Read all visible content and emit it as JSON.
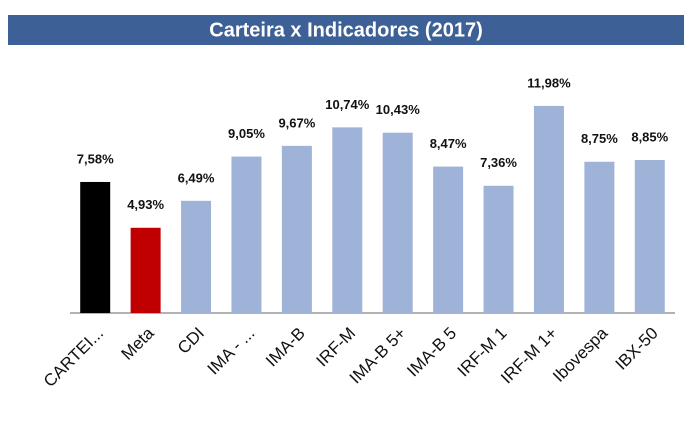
{
  "chart_data": {
    "type": "bar",
    "title": "Carteira x Indicadores (2017)",
    "categories": [
      "CARTEI...",
      "Meta",
      "CDI",
      "IMA - ...",
      "IMA-B",
      "IRF-M",
      "IMA-B 5+",
      "IMA-B 5",
      "IRF-M 1",
      "IRF-M 1+",
      "Ibovespa",
      "IBX-50"
    ],
    "values": [
      7.58,
      4.93,
      6.49,
      9.05,
      9.67,
      10.74,
      10.43,
      8.47,
      7.36,
      11.98,
      8.75,
      8.85
    ],
    "value_labels": [
      "7,58%",
      "4,93%",
      "6,49%",
      "9,05%",
      "9,67%",
      "10,74%",
      "10,43%",
      "8,47%",
      "7,36%",
      "11,98%",
      "8,75%",
      "8,85%"
    ],
    "colors": [
      "#000000",
      "#c00000",
      "#9fb3d8",
      "#9fb3d8",
      "#9fb3d8",
      "#9fb3d8",
      "#9fb3d8",
      "#9fb3d8",
      "#9fb3d8",
      "#9fb3d8",
      "#9fb3d8",
      "#9fb3d8"
    ],
    "ylim": [
      0,
      14
    ]
  }
}
